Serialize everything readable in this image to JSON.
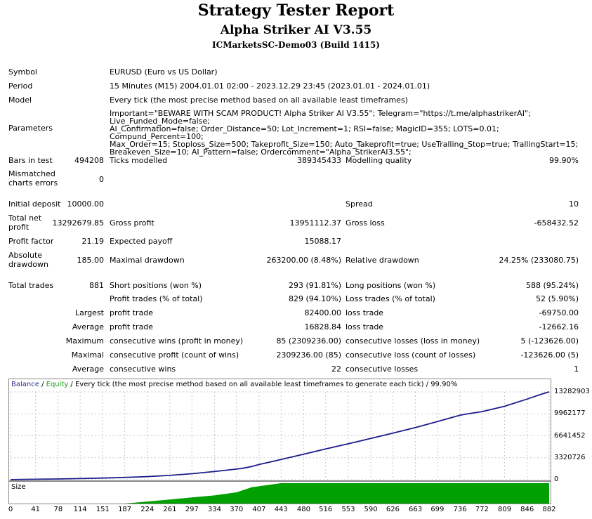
{
  "header": {
    "title": "Strategy Tester Report",
    "expert": "Alpha Striker AI V3.55",
    "server": "ICMarketsSC-Demo03 (Build 1415)"
  },
  "info": {
    "symbol_label": "Symbol",
    "symbol": "EURUSD (Euro vs US Dollar)",
    "period_label": "Period",
    "period": "15 Minutes (M15) 2004.01.01 02:00 - 2023.12.29 23:45 (2023.01.01 - 2024.01.01)",
    "model_label": "Model",
    "model": "Every tick (the most precise method based on all available least timeframes)",
    "params_label": "Parameters",
    "params_lines": [
      "Important=\"BEWARE WITH SCAM PRODUCT! Alpha Striker AI V3.55\"; Telegram=\"https://t.me/alphastrikerAI\"; Live_Funded_Mode=false;",
      "AI_Confirmation=false; Order_Distance=50; Lot_Increment=1; RSI=false; MagicID=355; LOTS=0.01; Compund_Percent=100;",
      "Max_Order=15; Stoploss_Size=500; Takeprofit_Size=150; Auto_Takeprofit=true; UseTralling_Stop=true; TrallingStart=15;",
      "Breakeven_Size=10; AI_Pattern=false; Ordercomment=\"Alpha_StrikerAI3.55\";"
    ]
  },
  "stats": {
    "bars_label": "Bars in test",
    "bars": "494208",
    "ticks_label": "Ticks modelled",
    "ticks": "389345433",
    "quality_label": "Modelling quality",
    "quality": "99.90%",
    "mismatch_label1": "Mismatched",
    "mismatch_label2": "charts errors",
    "mismatch": "0",
    "deposit_label": "Initial deposit",
    "deposit": "10000.00",
    "spread_label": "Spread",
    "spread": "10",
    "netprofit_label1": "Total net",
    "netprofit_label2": "profit",
    "netprofit": "13292679.85",
    "grossprofit_label": "Gross profit",
    "grossprofit": "13951112.37",
    "grossloss_label": "Gross loss",
    "grossloss": "-658432.52",
    "pf_label": "Profit factor",
    "pf": "21.19",
    "payoff_label": "Expected payoff",
    "payoff": "15088.17",
    "absdd_label1": "Absolute",
    "absdd_label2": "drawdown",
    "absdd": "185.00",
    "maxdd_label": "Maximal drawdown",
    "maxdd": "263200.00 (8.48%)",
    "reldd_label": "Relative drawdown",
    "reldd": "24.25% (233080.75)",
    "trades_label": "Total trades",
    "trades": "881",
    "short_label": "Short positions (won %)",
    "short": "293 (91.81%)",
    "long_label": "Long positions (won %)",
    "long": "588 (95.24%)",
    "ptrades_label": "Profit trades (% of total)",
    "ptrades": "829 (94.10%)",
    "ltrades_label": "Loss trades (% of total)",
    "ltrades": "52 (5.90%)",
    "largest_label": "Largest",
    "largest_pt_label": "profit trade",
    "largest_pt": "82400.00",
    "largest_lt_label": "loss trade",
    "largest_lt": "-69750.00",
    "average_label": "Average",
    "average_pt_label": "profit trade",
    "average_pt": "16828.84",
    "average_lt_label": "loss trade",
    "average_lt": "-12662.16",
    "maximum_label": "Maximum",
    "max_cw_label": "consecutive wins (profit in money)",
    "max_cw": "85 (2309236.00)",
    "max_cl_label": "consecutive losses (loss in money)",
    "max_cl": "5 (-123626.00)",
    "maximal_label": "Maximal",
    "mxl_cp_label": "consecutive profit (count of wins)",
    "mxl_cp": "2309236.00 (85)",
    "mxl_cl_label": "consecutive loss (count of losses)",
    "mxl_cl": "-123626.00 (5)",
    "avg2_label": "Average",
    "avg_cw_label": "consecutive wins",
    "avg_cw": "22",
    "avg_cl_label": "consecutive losses",
    "avg_cl": "1"
  },
  "chart_data": {
    "type": "line",
    "title_balance": "Balance",
    "title_sep1": " / ",
    "title_equity": "Equity",
    "title_rest": " / Every tick (the most precise method based on all available least timeframes to generate each tick) / 99.90%",
    "y_ticks": [
      "13282903",
      "9962177",
      "6641452",
      "3320726",
      "0"
    ],
    "x_ticks": [
      "0",
      "41",
      "78",
      "114",
      "151",
      "187",
      "224",
      "261",
      "297",
      "334",
      "370",
      "407",
      "443",
      "480",
      "516",
      "553",
      "590",
      "626",
      "663",
      "699",
      "736",
      "772",
      "809",
      "846",
      "882"
    ],
    "size_label": "Size",
    "xlim": [
      0,
      882
    ],
    "ylim": [
      0,
      13282903
    ],
    "balance_color": "#1c1c8c",
    "size_color": "#00a000",
    "series": [
      {
        "x": [
          0,
          41,
          78,
          114,
          151,
          187,
          224,
          261,
          297,
          334,
          370,
          380,
          395,
          407,
          443,
          480,
          516,
          553,
          590,
          626,
          663,
          699,
          736,
          745,
          772,
          809,
          846,
          870,
          882
        ],
        "y": [
          10000,
          60000,
          110000,
          170000,
          240000,
          340000,
          470000,
          650000,
          900000,
          1230000,
          1600000,
          1720000,
          2000000,
          2290000,
          3050000,
          3850000,
          4650000,
          5430000,
          6240000,
          7050000,
          7900000,
          8800000,
          9750000,
          9900000,
          10300000,
          11100000,
          12200000,
          12950000,
          13292680
        ]
      }
    ],
    "size_series": {
      "x": [
        0,
        187,
        224,
        261,
        297,
        334,
        370,
        395,
        443,
        882
      ],
      "y": [
        0.0,
        0.0,
        0.1,
        0.2,
        0.3,
        0.4,
        0.55,
        0.8,
        1.0,
        1.0
      ]
    }
  }
}
